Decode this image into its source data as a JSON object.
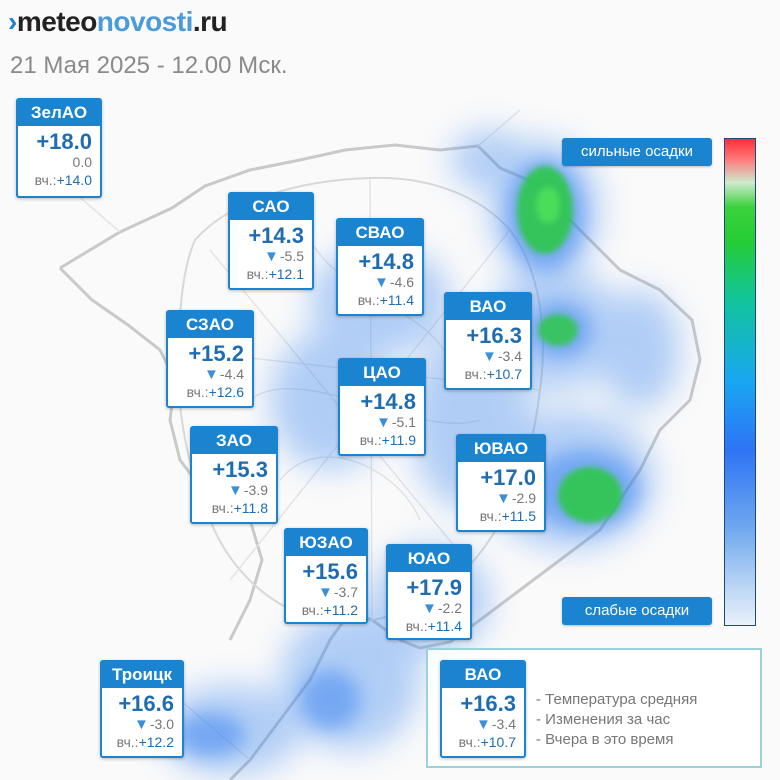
{
  "header": {
    "brand_mark": "›",
    "brand_part1": "meteo",
    "brand_part2": "novosti",
    "brand_part3": ".ru",
    "subtitle": "21 Мая 2025 - 12.00 Мск."
  },
  "districts": [
    {
      "name": "ЗелАО",
      "temp": "+18.0",
      "change_arrow": "",
      "change": "0.0",
      "yesterday_label": "вч.:",
      "yesterday": "+14.0"
    },
    {
      "name": "САО",
      "temp": "+14.3",
      "change_arrow": "▼",
      "change": "-5.5",
      "yesterday_label": "вч.:",
      "yesterday": "+12.1"
    },
    {
      "name": "СВАО",
      "temp": "+14.8",
      "change_arrow": "▼",
      "change": "-4.6",
      "yesterday_label": "вч.:",
      "yesterday": "+11.4"
    },
    {
      "name": "ВАО",
      "temp": "+16.3",
      "change_arrow": "▼",
      "change": "-3.4",
      "yesterday_label": "вч.:",
      "yesterday": "+10.7"
    },
    {
      "name": "СЗАО",
      "temp": "+15.2",
      "change_arrow": "▼",
      "change": "-4.4",
      "yesterday_label": "вч.:",
      "yesterday": "+12.6"
    },
    {
      "name": "ЦАО",
      "temp": "+14.8",
      "change_arrow": "▼",
      "change": "-5.1",
      "yesterday_label": "вч.:",
      "yesterday": "+11.9"
    },
    {
      "name": "ЗАО",
      "temp": "+15.3",
      "change_arrow": "▼",
      "change": "-3.9",
      "yesterday_label": "вч.:",
      "yesterday": "+11.8"
    },
    {
      "name": "ЮВАО",
      "temp": "+17.0",
      "change_arrow": "▼",
      "change": "-2.9",
      "yesterday_label": "вч.:",
      "yesterday": "+11.5"
    },
    {
      "name": "ЮЗАО",
      "temp": "+15.6",
      "change_arrow": "▼",
      "change": "-3.7",
      "yesterday_label": "вч.:",
      "yesterday": "+11.2"
    },
    {
      "name": "ЮАО",
      "temp": "+17.9",
      "change_arrow": "▼",
      "change": "-2.2",
      "yesterday_label": "вч.:",
      "yesterday": "+11.4"
    },
    {
      "name": "Троицк",
      "temp": "+16.6",
      "change_arrow": "▼",
      "change": "-3.0",
      "yesterday_label": "вч.:",
      "yesterday": "+12.2"
    }
  ],
  "precip_scale": {
    "top_label": "сильные осадки",
    "bottom_label": "слабые осадки",
    "colors": [
      "#ff2d3a",
      "#3cd23c",
      "#19a6f2",
      "#2e73f5",
      "#e9f1fb"
    ]
  },
  "legend": {
    "sample": {
      "name": "ВАО",
      "temp": "+16.3",
      "change_arrow": "▼",
      "change": "-3.4",
      "yesterday_label": "вч.:",
      "yesterday": "+10.7"
    },
    "rows": [
      "- Температура средняя",
      "- Изменения за час",
      "- Вчера в это время"
    ]
  },
  "colors": {
    "accent": "#1a84d1",
    "temp_text": "#1f6db0",
    "precip_light": "#3a86f0",
    "precip_heavy": "#2fc84a"
  }
}
